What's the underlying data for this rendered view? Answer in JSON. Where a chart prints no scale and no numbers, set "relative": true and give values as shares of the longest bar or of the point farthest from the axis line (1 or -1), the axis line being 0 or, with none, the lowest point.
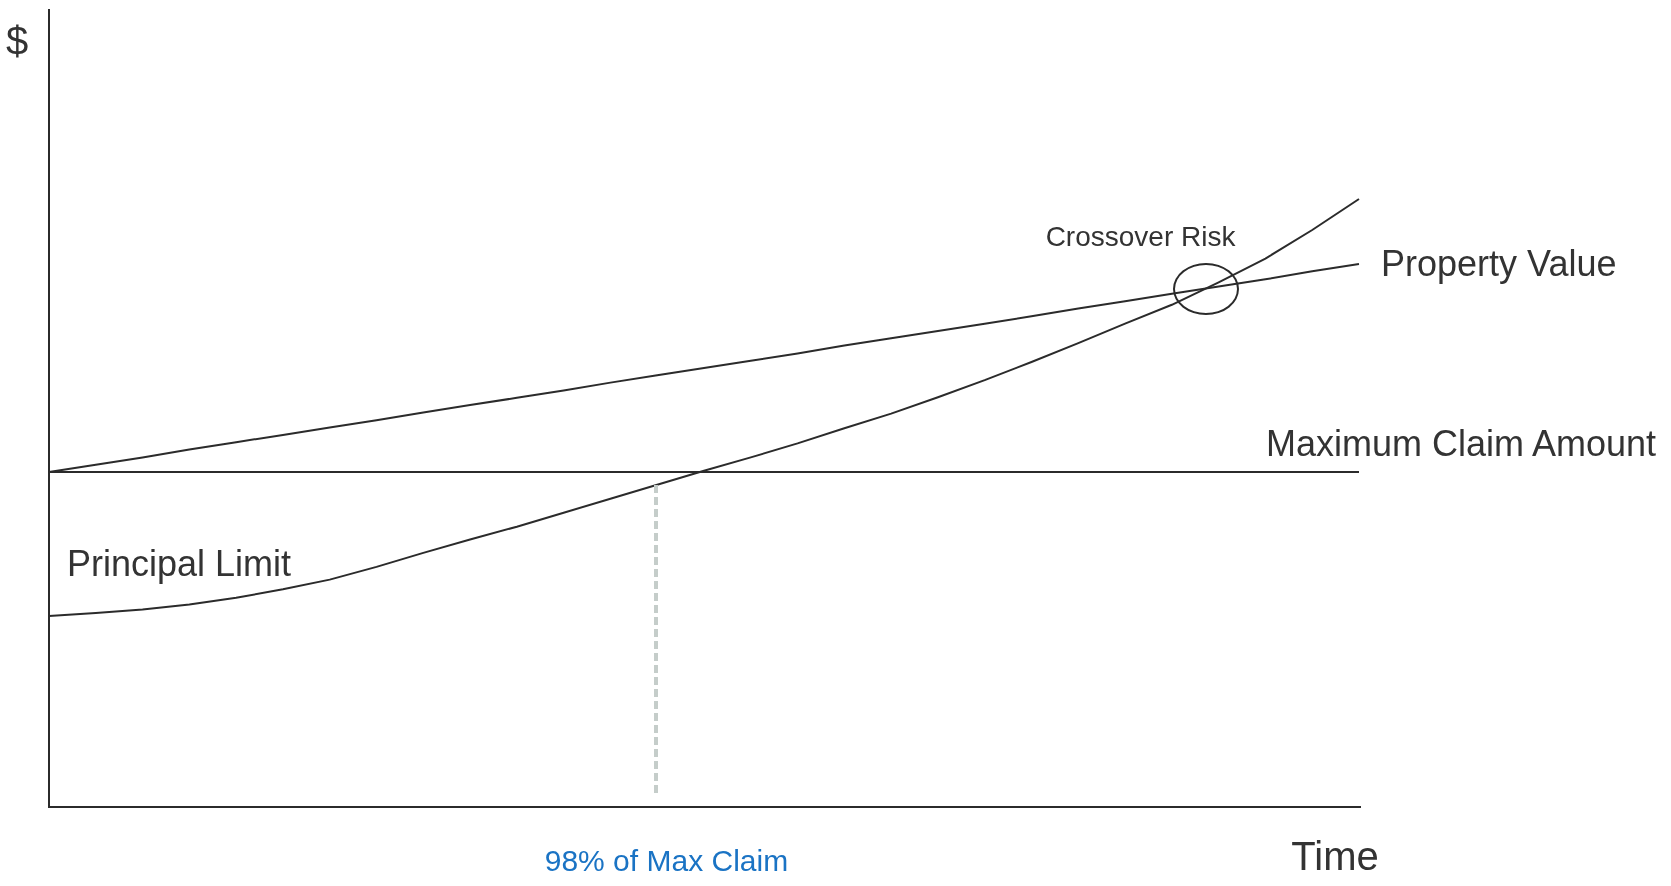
{
  "chart_data": {
    "type": "line",
    "xlabel": "Time",
    "ylabel": "$",
    "relative": true,
    "legend": false,
    "marker": "none",
    "categories": [
      null,
      null,
      null,
      null,
      null,
      null,
      null,
      null,
      null,
      null,
      null,
      null,
      null,
      null,
      null,
      null,
      null,
      null,
      null,
      null,
      null,
      null,
      null,
      null,
      null,
      null,
      null,
      null,
      null
    ],
    "series": [
      {
        "name": "Property Value",
        "color": "#2b2b2b",
        "values": [
          0.551,
          0.563,
          0.575,
          0.588,
          0.6,
          0.612,
          0.624,
          0.636,
          0.649,
          0.661,
          0.673,
          0.685,
          0.698,
          0.71,
          0.722,
          0.734,
          0.746,
          0.759,
          0.771,
          0.783,
          0.795,
          0.807,
          0.82,
          0.832,
          0.844,
          0.856,
          0.868,
          0.881,
          0.893
        ]
      },
      {
        "name": "Maximum Claim Amount",
        "color": "#2b2b2b",
        "values": [
          0.551,
          0.551,
          0.551,
          0.551,
          0.551,
          0.551,
          0.551,
          0.551,
          0.551,
          0.551,
          0.551,
          0.551,
          0.551,
          0.551,
          0.551,
          0.551,
          0.551,
          0.551,
          0.551,
          0.551,
          0.551,
          0.551,
          0.551,
          0.551,
          0.551,
          0.551,
          0.551,
          0.551,
          0.551
        ]
      },
      {
        "name": "Principal Limit",
        "color": "#2b2b2b",
        "values": [
          0.314,
          0.319,
          0.325,
          0.333,
          0.344,
          0.358,
          0.374,
          0.395,
          0.418,
          0.44,
          0.461,
          0.484,
          0.507,
          0.53,
          0.553,
          0.575,
          0.598,
          0.623,
          0.647,
          0.674,
          0.702,
          0.732,
          0.763,
          0.795,
          0.826,
          0.863,
          0.902,
          0.949,
          1
        ]
      }
    ],
    "annotations": [
      "Crossover Risk",
      "98% of Max Claim"
    ]
  }
}
